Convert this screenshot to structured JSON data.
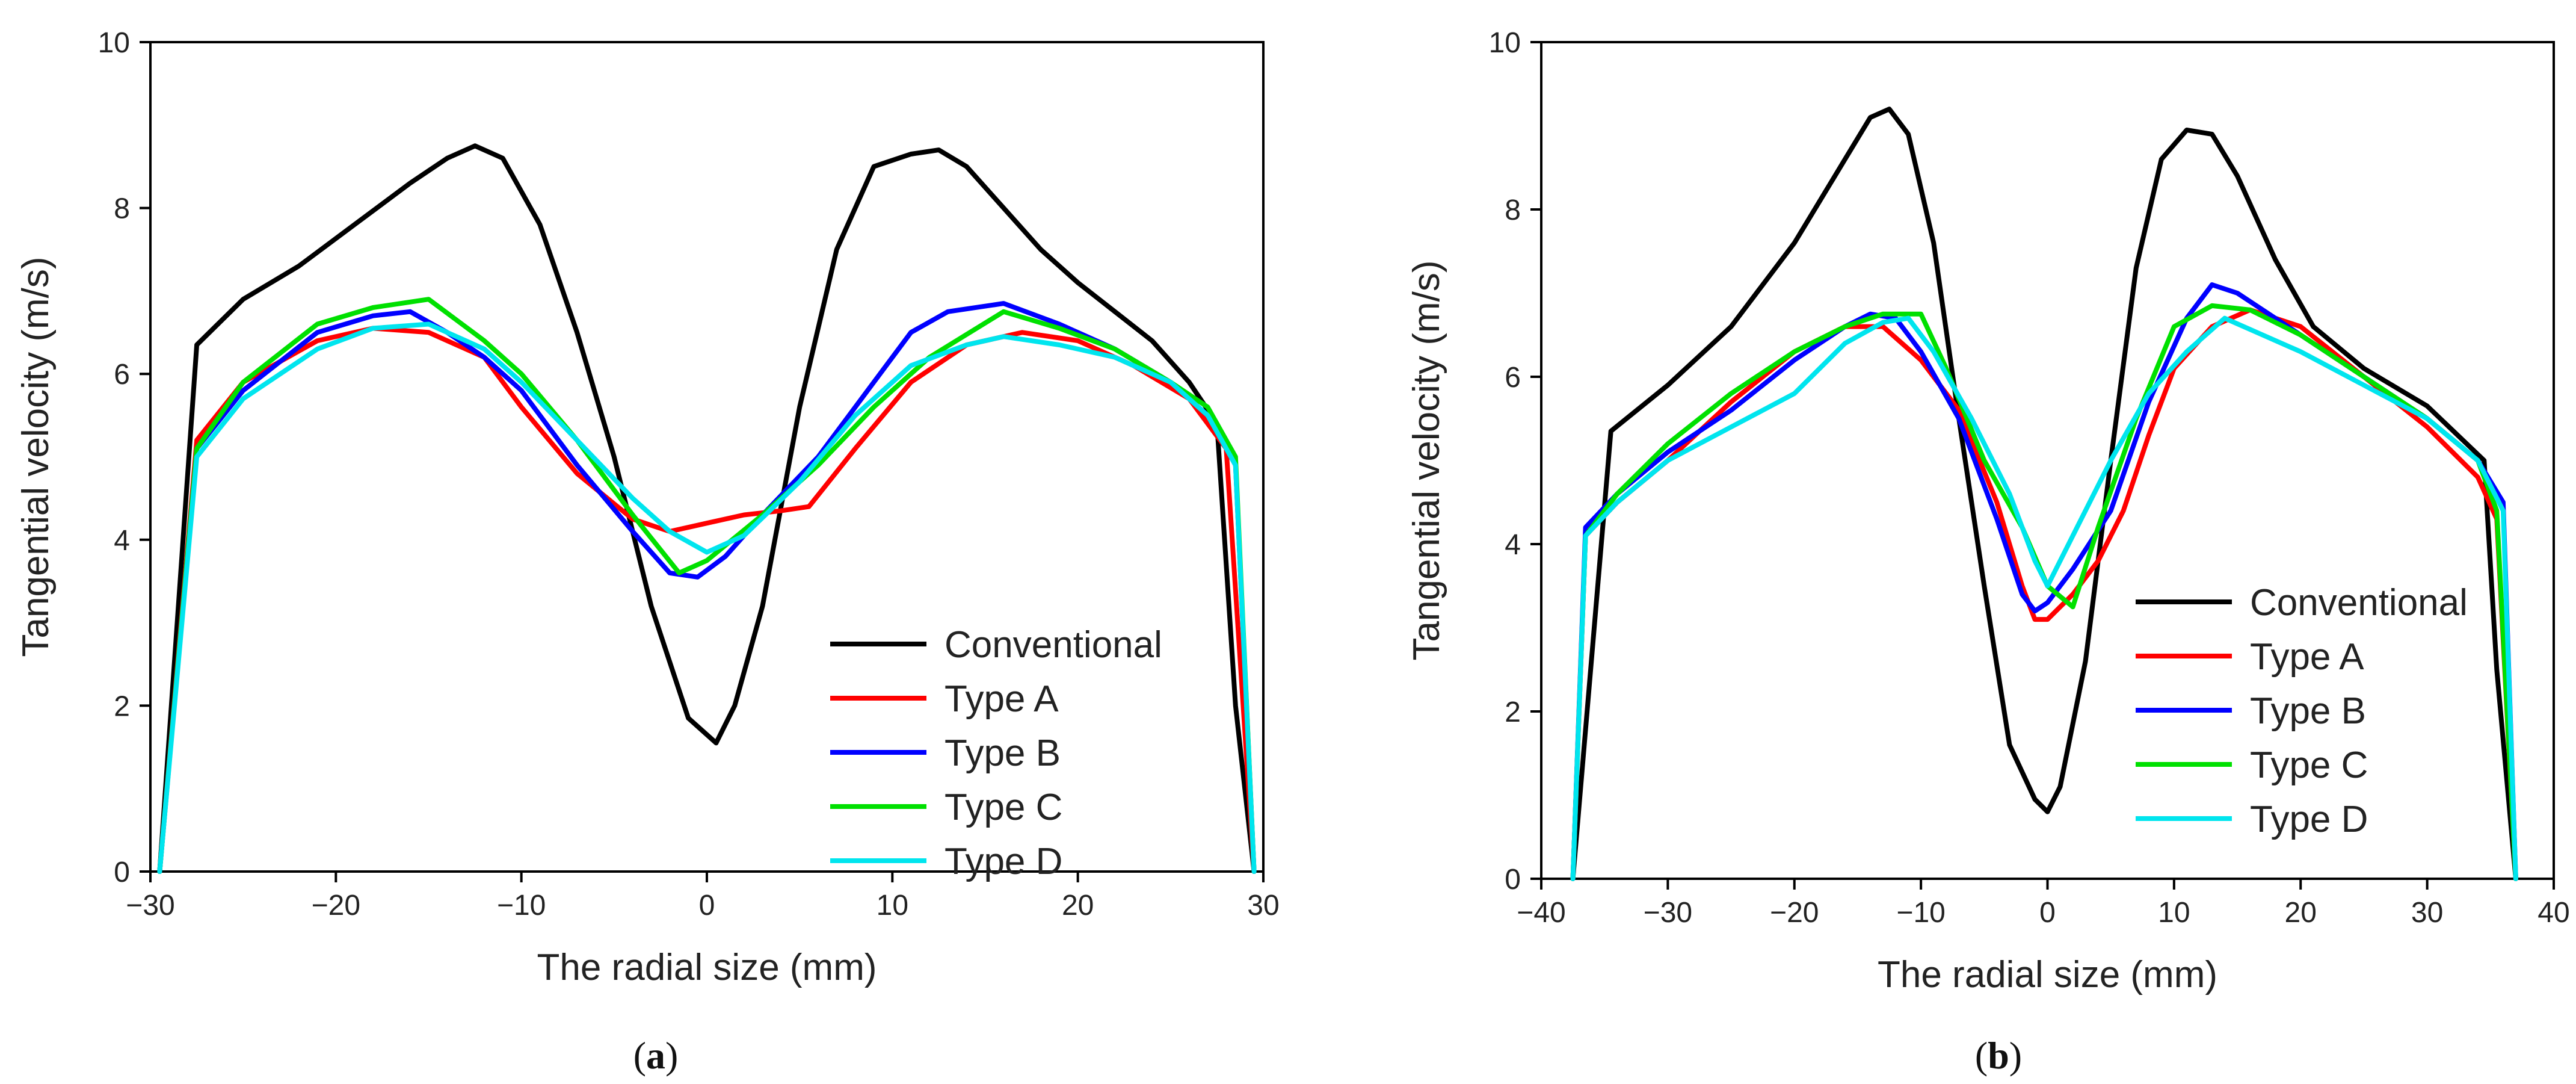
{
  "chart_data": [
    {
      "type": "line",
      "panel_label": "a",
      "xlabel": "The radial size (mm)",
      "ylabel": "Tangential velocity (m/s)",
      "xlim": [
        -30,
        30
      ],
      "ylim": [
        0,
        10
      ],
      "xticks": [
        -30,
        -20,
        -10,
        0,
        10,
        20,
        30
      ],
      "yticks": [
        0,
        2,
        4,
        6,
        8,
        10
      ],
      "xtick_labels": [
        "−30",
        "−20",
        "−10",
        "0",
        "10",
        "20",
        "30"
      ],
      "ytick_labels": [
        "0",
        "2",
        "4",
        "6",
        "8",
        "10"
      ],
      "legend_position": "bottom-right",
      "series": [
        {
          "name": "Conventional",
          "color": "#000000",
          "x": [
            -29.5,
            -27.5,
            -25,
            -22,
            -19,
            -16,
            -14,
            -12.5,
            -11,
            -9,
            -7,
            -5,
            -3,
            -1,
            0.5,
            1.5,
            3,
            5,
            7,
            9,
            11,
            12.5,
            14,
            16,
            18,
            20,
            22,
            24,
            26,
            27.5,
            28.5,
            29.5
          ],
          "y": [
            0,
            6.35,
            6.9,
            7.3,
            7.8,
            8.3,
            8.6,
            8.75,
            8.6,
            7.8,
            6.5,
            5.0,
            3.2,
            1.85,
            1.55,
            2.0,
            3.2,
            5.6,
            7.5,
            8.5,
            8.65,
            8.7,
            8.5,
            8.0,
            7.5,
            7.1,
            6.75,
            6.4,
            5.9,
            5.4,
            2.0,
            0
          ]
        },
        {
          "name": "Type A",
          "color": "#ff0000",
          "x": [
            -29.5,
            -27.5,
            -25,
            -21,
            -18,
            -15,
            -12,
            -10,
            -7,
            -4,
            -2,
            0,
            2,
            4,
            5.5,
            8,
            11,
            14,
            17,
            20,
            23,
            26,
            28,
            29.5
          ],
          "y": [
            0,
            5.2,
            5.9,
            6.4,
            6.55,
            6.5,
            6.2,
            5.6,
            4.8,
            4.25,
            4.1,
            4.2,
            4.3,
            4.35,
            4.4,
            5.1,
            5.9,
            6.35,
            6.5,
            6.4,
            6.1,
            5.7,
            5.1,
            0
          ]
        },
        {
          "name": "Type B",
          "color": "#0000ff",
          "x": [
            -29.5,
            -27.5,
            -25,
            -21,
            -18,
            -16,
            -14,
            -12,
            -10,
            -7,
            -4,
            -2,
            -0.5,
            1,
            3,
            6,
            9,
            11,
            13,
            16,
            19,
            22,
            25,
            27,
            28.5,
            29.5
          ],
          "y": [
            0,
            5.1,
            5.8,
            6.5,
            6.7,
            6.75,
            6.5,
            6.2,
            5.8,
            4.9,
            4.1,
            3.6,
            3.55,
            3.8,
            4.3,
            5.0,
            5.9,
            6.5,
            6.75,
            6.85,
            6.6,
            6.3,
            5.9,
            5.5,
            4.9,
            0
          ]
        },
        {
          "name": "Type C",
          "color": "#00e000",
          "x": [
            -29.5,
            -27.5,
            -25,
            -21,
            -18,
            -15,
            -12,
            -10,
            -7,
            -4,
            -1.5,
            0,
            3,
            6,
            9,
            12,
            16,
            19,
            22,
            25,
            27,
            28.5,
            29.5
          ],
          "y": [
            0,
            5.1,
            5.9,
            6.6,
            6.8,
            6.9,
            6.4,
            6.0,
            5.2,
            4.3,
            3.6,
            3.75,
            4.3,
            4.9,
            5.6,
            6.2,
            6.75,
            6.55,
            6.3,
            5.9,
            5.6,
            5.0,
            0
          ]
        },
        {
          "name": "Type D",
          "color": "#00e5ee",
          "x": [
            -29.5,
            -27.5,
            -25,
            -21,
            -18,
            -15,
            -12,
            -10,
            -7,
            -4,
            -2,
            0,
            2,
            5,
            8,
            11,
            14,
            16,
            19,
            22,
            25,
            27,
            28.5,
            29.5
          ],
          "y": [
            0,
            5.0,
            5.7,
            6.3,
            6.55,
            6.6,
            6.3,
            5.9,
            5.2,
            4.5,
            4.1,
            3.85,
            4.05,
            4.7,
            5.5,
            6.1,
            6.35,
            6.45,
            6.35,
            6.2,
            5.9,
            5.5,
            4.9,
            0
          ]
        }
      ]
    },
    {
      "type": "line",
      "panel_label": "b",
      "xlabel": "The radial size (mm)",
      "ylabel": "Tangential velocity (m/s)",
      "xlim": [
        -40,
        40
      ],
      "ylim": [
        0,
        10
      ],
      "xticks": [
        -40,
        -30,
        -20,
        -10,
        0,
        10,
        20,
        30,
        40
      ],
      "yticks": [
        0,
        2,
        4,
        6,
        8,
        10
      ],
      "xtick_labels": [
        "−40",
        "−30",
        "−20",
        "−10",
        "0",
        "10",
        "20",
        "30",
        "40"
      ],
      "ytick_labels": [
        "0",
        "2",
        "4",
        "6",
        "8",
        "10"
      ],
      "legend_position": "bottom-right",
      "series": [
        {
          "name": "Conventional",
          "color": "#000000",
          "x": [
            -37.5,
            -34.5,
            -30,
            -25,
            -20,
            -16,
            -14,
            -12.5,
            -11,
            -9,
            -7,
            -5,
            -3,
            -1,
            0,
            1,
            3,
            5,
            7,
            9,
            11,
            13,
            15,
            18,
            21,
            25,
            30,
            34.5,
            35.5,
            37
          ],
          "y": [
            0,
            5.35,
            5.9,
            6.6,
            7.6,
            8.6,
            9.1,
            9.2,
            8.9,
            7.6,
            5.5,
            3.5,
            1.6,
            0.95,
            0.8,
            1.1,
            2.6,
            5.0,
            7.3,
            8.6,
            8.95,
            8.9,
            8.4,
            7.4,
            6.6,
            6.1,
            5.65,
            5.0,
            2.5,
            0
          ]
        },
        {
          "name": "Type A",
          "color": "#ff0000",
          "x": [
            -37.5,
            -36.5,
            -34,
            -30,
            -25,
            -20,
            -16,
            -13,
            -10,
            -7,
            -4,
            -2,
            -1,
            0,
            2,
            4,
            6,
            8,
            10,
            13,
            16,
            20,
            25,
            30,
            34,
            35.5,
            37
          ],
          "y": [
            0,
            4.1,
            4.5,
            5.0,
            5.7,
            6.3,
            6.6,
            6.6,
            6.2,
            5.6,
            4.5,
            3.5,
            3.1,
            3.1,
            3.4,
            3.8,
            4.4,
            5.3,
            6.1,
            6.6,
            6.8,
            6.6,
            6.0,
            5.4,
            4.8,
            4.3,
            0
          ]
        },
        {
          "name": "Type B",
          "color": "#0000ff",
          "x": [
            -37.5,
            -36.5,
            -34,
            -30,
            -25,
            -20,
            -16,
            -14,
            -12,
            -10,
            -7,
            -4,
            -2,
            -1,
            0,
            2,
            5,
            8,
            11,
            13,
            15,
            18,
            21,
            25,
            30,
            34,
            36,
            37
          ],
          "y": [
            0,
            4.2,
            4.6,
            5.1,
            5.6,
            6.2,
            6.6,
            6.75,
            6.7,
            6.3,
            5.5,
            4.3,
            3.4,
            3.2,
            3.3,
            3.7,
            4.4,
            5.7,
            6.7,
            7.1,
            7.0,
            6.7,
            6.4,
            6.0,
            5.5,
            5.0,
            4.5,
            0
          ]
        },
        {
          "name": "Type C",
          "color": "#00e000",
          "x": [
            -37.5,
            -36.5,
            -34,
            -30,
            -25,
            -20,
            -16,
            -13,
            -10,
            -8,
            -5,
            -2,
            0,
            2,
            4,
            7,
            10,
            13,
            16,
            20,
            25,
            30,
            34,
            35.5,
            37
          ],
          "y": [
            0,
            4.1,
            4.6,
            5.2,
            5.8,
            6.3,
            6.6,
            6.75,
            6.75,
            6.1,
            5.0,
            4.2,
            3.5,
            3.25,
            4.2,
            5.5,
            6.6,
            6.85,
            6.8,
            6.5,
            6.0,
            5.5,
            5.0,
            4.4,
            0
          ]
        },
        {
          "name": "Type D",
          "color": "#00e5ee",
          "x": [
            -37.5,
            -36.5,
            -34,
            -30,
            -25,
            -20,
            -16,
            -13,
            -11,
            -9,
            -6,
            -3,
            -1,
            0,
            2,
            5,
            8,
            11,
            14,
            17,
            20,
            25,
            30,
            34,
            36,
            37
          ],
          "y": [
            0,
            4.1,
            4.5,
            5.0,
            5.4,
            5.8,
            6.4,
            6.65,
            6.7,
            6.3,
            5.5,
            4.6,
            3.8,
            3.5,
            4.1,
            5.0,
            5.8,
            6.3,
            6.7,
            6.5,
            6.3,
            5.9,
            5.5,
            5.0,
            4.4,
            0
          ]
        }
      ]
    }
  ],
  "captions": [
    "a",
    "b"
  ]
}
